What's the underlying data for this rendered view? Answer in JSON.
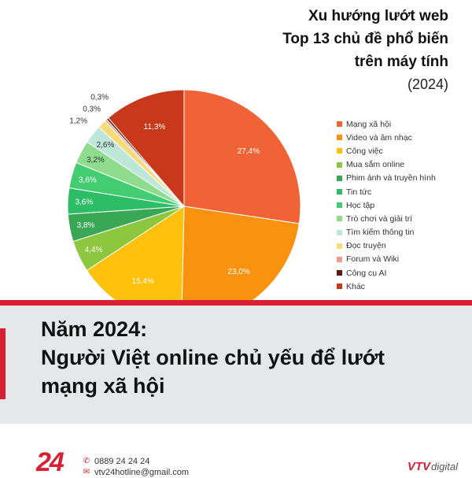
{
  "title": {
    "line1": "Xu hướng lướt web",
    "line2": "Top 13 chủ đề phổ biến",
    "line3": "trên máy tính",
    "year": "(2024)"
  },
  "chart_data": {
    "type": "pie",
    "categories": [
      "Mạng xã hội",
      "Video và âm nhạc",
      "Công việc",
      "Mua sắm online",
      "Phim ảnh và truyền hình",
      "Tin tức",
      "Học tập",
      "Trò chơi và giải trí",
      "Tìm kiếm thông tin",
      "Đọc truyện",
      "Forum và Wiki",
      "Công cụ AI",
      "Khác"
    ],
    "values": [
      27.4,
      23.0,
      15.4,
      4.4,
      3.8,
      3.6,
      3.6,
      3.2,
      2.6,
      1.2,
      0.3,
      0.3,
      11.3
    ],
    "labels": [
      "27,4%",
      "23,0%",
      "15,4%",
      "4,4%",
      "3,8%",
      "3,6%",
      "3,6%",
      "3,2%",
      "2,6%",
      "1,2%",
      "0,3%",
      "0,3%",
      "11,3%"
    ],
    "colors": [
      "#ef6337",
      "#f9920f",
      "#fdc10e",
      "#8dc63f",
      "#3aa757",
      "#2ebd67",
      "#44cc73",
      "#8fdc8f",
      "#bfe7d9",
      "#f9dc7a",
      "#f4978e",
      "#5a1a12",
      "#c8381a"
    ],
    "label_colors": [
      "#ffffff",
      "#ffffff",
      "#ffffff",
      "#ffffff",
      "#ffffff",
      "#ffffff",
      "#ffffff",
      "#333333",
      "#333333",
      "#333333",
      "#333333",
      "#333333",
      "#ffffff"
    ]
  },
  "banner": {
    "line1": "Năm 2024:",
    "line2": "Người Việt online chủ yếu để lướt",
    "line3": "mạng xã hội"
  },
  "footer": {
    "logo": "24",
    "phone": "0889 24 24 24",
    "email": "vtv24hotline@gmail.com",
    "brand_main": "VTV",
    "brand_sub": "digital"
  }
}
